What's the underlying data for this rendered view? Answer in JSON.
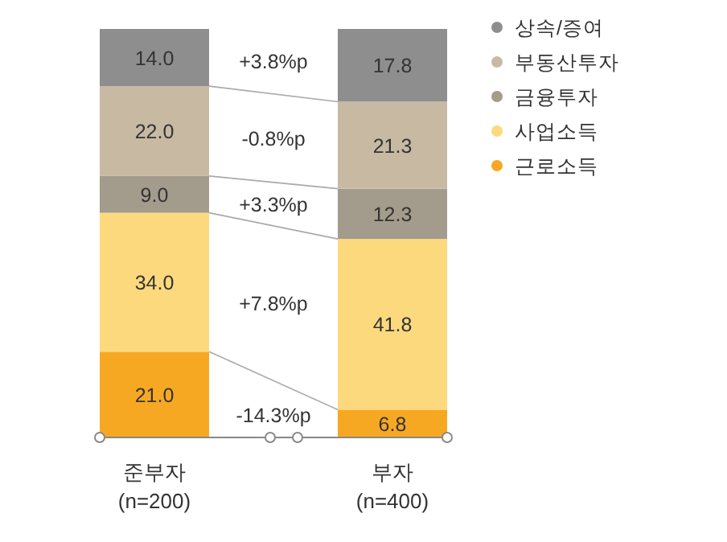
{
  "chart_data": {
    "type": "bar",
    "stacked": true,
    "categories": [
      "준부자\n(n=200)",
      "부자\n(n=400)"
    ],
    "series": [
      {
        "name": "근로소득",
        "color": "#f7a823",
        "values": [
          21.0,
          6.8
        ],
        "value_labels": [
          "21.0",
          "6.8"
        ]
      },
      {
        "name": "사업소득",
        "color": "#fdd97e",
        "values": [
          34.0,
          41.8
        ],
        "value_labels": [
          "34.0",
          "41.8"
        ]
      },
      {
        "name": "금융투자",
        "color": "#a39b8c",
        "values": [
          9.0,
          12.3
        ],
        "value_labels": [
          "9.0",
          "12.3"
        ]
      },
      {
        "name": "부동산투자",
        "color": "#c8b9a3",
        "values": [
          22.0,
          21.3
        ],
        "value_labels": [
          "22.0",
          "21.3"
        ]
      },
      {
        "name": "상속/증여",
        "color": "#8e8e8e",
        "values": [
          14.0,
          17.8
        ],
        "value_labels": [
          "14.0",
          "17.8"
        ]
      }
    ],
    "annotations": [
      "+3.8%p",
      "-0.8%p",
      "+3.3%p",
      "+7.8%p",
      "-14.3%p"
    ],
    "legend": "right"
  }
}
